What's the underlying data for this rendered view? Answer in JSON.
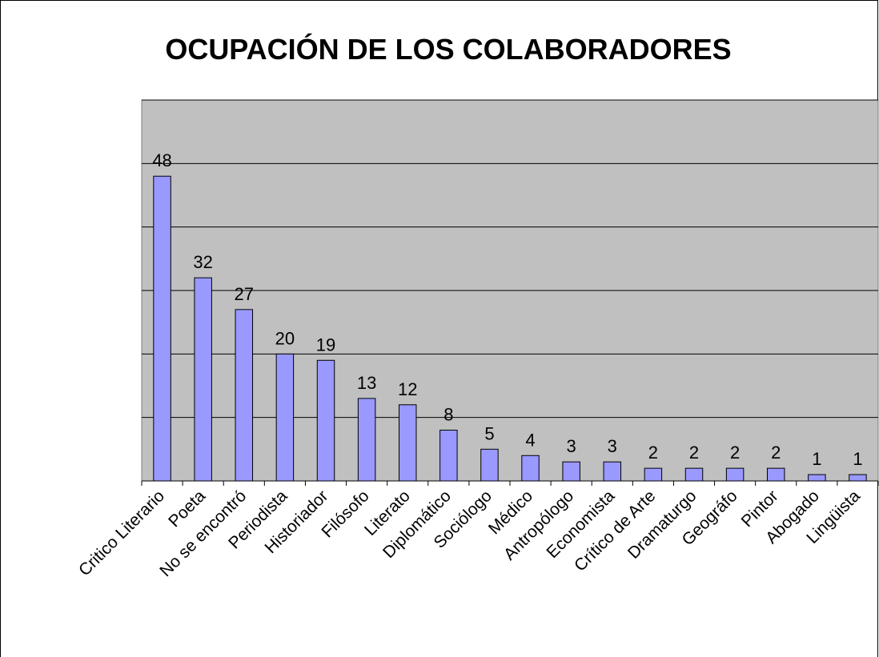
{
  "chart_data": {
    "type": "bar",
    "title": "OCUPACIÓN DE LOS COLABORADORES",
    "categories": [
      "Critico Literario",
      "Poeta",
      "No se encontró",
      "Periodista",
      "Historiador",
      "Filósofo",
      "Literato",
      "Diplomático",
      "Sociólogo",
      "Médico",
      "Antropólogo",
      "Economista",
      "Crítico de Arte",
      "Dramaturgo",
      "Geográfo",
      "Pintor",
      "Abogado",
      "Lingüista"
    ],
    "values": [
      48,
      32,
      27,
      20,
      19,
      13,
      12,
      8,
      5,
      4,
      3,
      3,
      2,
      2,
      2,
      2,
      1,
      1
    ],
    "color": "#9999ff",
    "ylim": [
      0,
      60
    ],
    "yticks": [
      0,
      10,
      20,
      30,
      40,
      50,
      60
    ],
    "grid": true
  }
}
